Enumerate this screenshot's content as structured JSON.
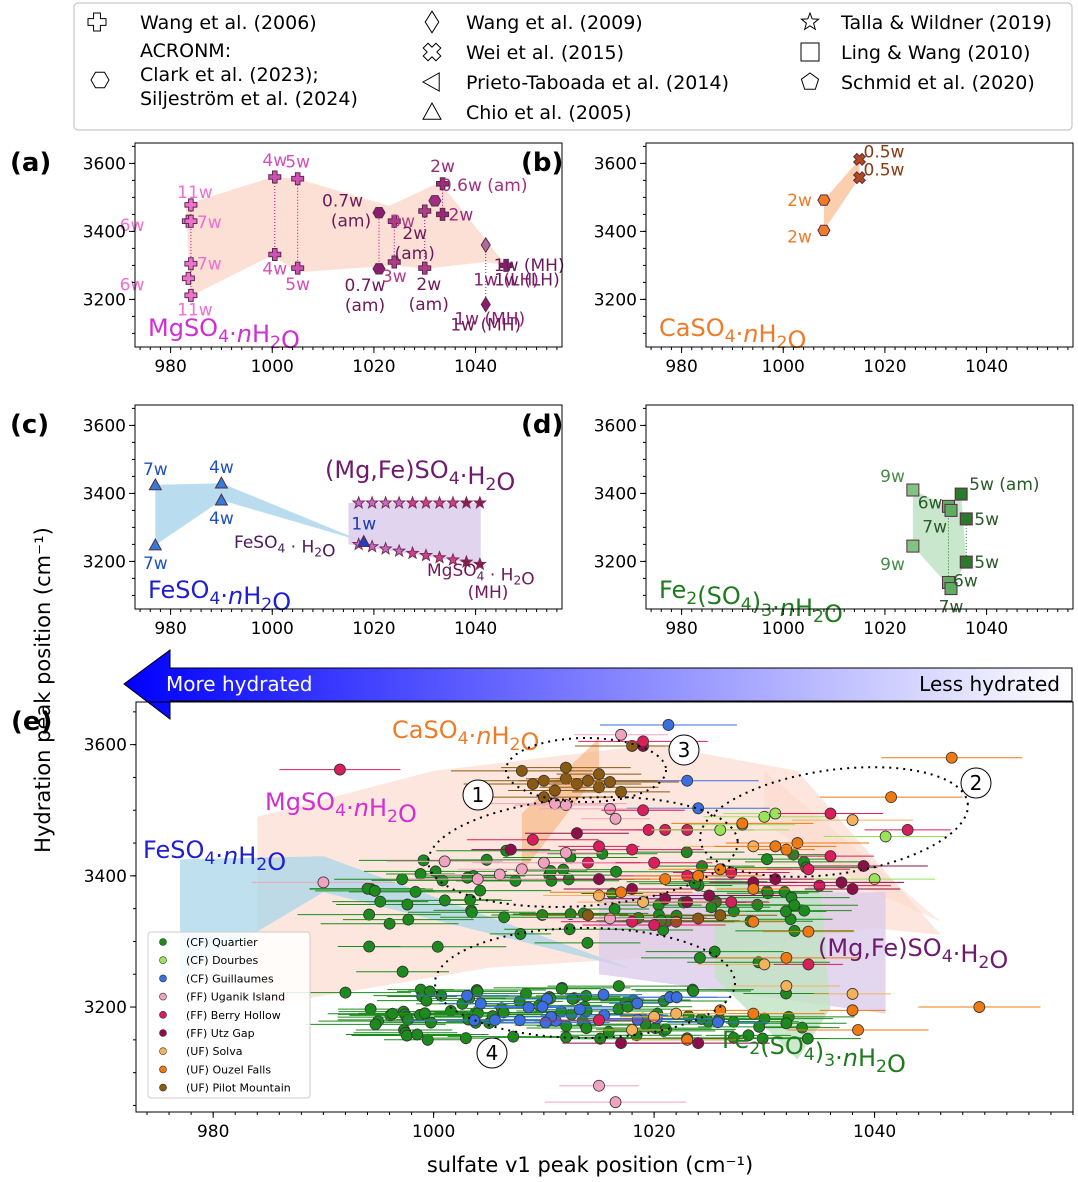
{
  "legend": [
    {
      "label": "Wang et al. (2006)",
      "marker": "plus"
    },
    {
      "label": "ACRONM:",
      "label2": "Clark et al. (2023);",
      "label3": "Siljeström et al. (2024)",
      "marker": "hexagon"
    },
    {
      "label": "Wang et al. (2009)",
      "marker": "diamond"
    },
    {
      "label": "Wei et al. (2015)",
      "marker": "x"
    },
    {
      "label": "Prieto-Taboada et al. (2014)",
      "marker": "triangle-left"
    },
    {
      "label": "Chio et al. (2005)",
      "marker": "triangle-up"
    },
    {
      "label": "Talla & Wildner (2019)",
      "marker": "star"
    },
    {
      "label": "Ling & Wang (2010)",
      "marker": "square"
    },
    {
      "label": "Schmid et al. (2020)",
      "marker": "pentagon"
    }
  ],
  "axes": {
    "xlabel": "sulfate v1 peak position (cm⁻¹)",
    "ylabel": "Hydration peak position (cm⁻¹)",
    "arrow_left": "More hydrated",
    "arrow_right": "Less hydrated"
  },
  "colors": {
    "mg": "#d12fd1",
    "ca": "#ee7b28",
    "fe2": "#1f1fcf",
    "fe3": "#1e7b1e",
    "mgfe": "#6e1a6e",
    "mg_fill": "#fbd5c8",
    "fe2_fill": "#a8d5ea",
    "fe3_fill": "#bfe3c4",
    "mgfe_fill": "#d9c9ea"
  },
  "chart_data": [
    {
      "panel": "(a)",
      "type": "scatter",
      "title": "MgSO4·nH2O",
      "xlim": [
        973,
        1057
      ],
      "ylim": [
        3060,
        3660
      ],
      "xticks": [
        980,
        1000,
        1020,
        1040
      ],
      "yticks": [
        3200,
        3400,
        3600
      ],
      "points": [
        {
          "x": 983.5,
          "y": 3430,
          "label": "6w",
          "color": "#f06fcf",
          "marker": "plus"
        },
        {
          "x": 984,
          "y": 3478,
          "label": "11w",
          "color": "#f06fcf",
          "marker": "plus"
        },
        {
          "x": 984,
          "y": 3430,
          "label": "7w",
          "color": "#f06fcf",
          "marker": "plus"
        },
        {
          "x": 983.5,
          "y": 3262,
          "label": "6w",
          "color": "#f06fcf",
          "marker": "plus"
        },
        {
          "x": 984,
          "y": 3305,
          "label": "7w",
          "color": "#f06fcf",
          "marker": "plus"
        },
        {
          "x": 984,
          "y": 3212,
          "label": "11w",
          "color": "#f06fcf",
          "marker": "plus"
        },
        {
          "x": 1000.5,
          "y": 3560,
          "label": "4w",
          "color": "#d34fb8",
          "marker": "plus"
        },
        {
          "x": 1005,
          "y": 3555,
          "label": "5w",
          "color": "#d34fb8",
          "marker": "plus"
        },
        {
          "x": 1000.5,
          "y": 3332,
          "label": "4w",
          "color": "#d34fb8",
          "marker": "plus"
        },
        {
          "x": 1005,
          "y": 3292,
          "label": "5w",
          "color": "#d34fb8",
          "marker": "plus"
        },
        {
          "x": 1021,
          "y": 3455,
          "label": "0.7w (am)",
          "color": "#8a1d70",
          "marker": "hexagon"
        },
        {
          "x": 1021,
          "y": 3290,
          "label": "0.7w (am)",
          "color": "#8a1d70",
          "marker": "hexagon"
        },
        {
          "x": 1024,
          "y": 3430,
          "label": "3w",
          "color": "#b03c8a",
          "marker": "plus"
        },
        {
          "x": 1024,
          "y": 3310,
          "label": "3w",
          "color": "#b03c8a",
          "marker": "plus"
        },
        {
          "x": 1030,
          "y": 3460,
          "label": "2w (am)",
          "color": "#b03c8a",
          "marker": "plus"
        },
        {
          "x": 1030,
          "y": 3292,
          "label": "2w (am)",
          "color": "#b03c8a",
          "marker": "plus"
        },
        {
          "x": 1032,
          "y": 3490,
          "label": "0.6w (am)",
          "color": "#a0307f",
          "marker": "hexagon"
        },
        {
          "x": 1033.5,
          "y": 3540,
          "label": "2w",
          "color": "#9a2a78",
          "marker": "plus"
        },
        {
          "x": 1033.5,
          "y": 3450,
          "label": "2w",
          "color": "#9a2a78",
          "marker": "plus"
        },
        {
          "x": 1042,
          "y": 3360,
          "label": "1w (MH)",
          "color": "#b06a9a",
          "marker": "diamond"
        },
        {
          "x": 1042,
          "y": 3185,
          "label": "1w (MH)",
          "color": "#8a1d70",
          "marker": "diamond"
        },
        {
          "x": 1046,
          "y": 3300,
          "label": "1w (LH)",
          "color": "#8a1d70",
          "marker": "plus"
        }
      ]
    },
    {
      "panel": "(b)",
      "type": "scatter",
      "title": "CaSO4·nH2O",
      "xlim": [
        973,
        1057
      ],
      "ylim": [
        3060,
        3660
      ],
      "xticks": [
        980,
        1000,
        1020,
        1040
      ],
      "yticks": [
        3200,
        3400,
        3600
      ],
      "points": [
        {
          "x": 1008,
          "y": 3492,
          "label": "2w",
          "color": "#ee7b28",
          "marker": "hexagon"
        },
        {
          "x": 1008,
          "y": 3403,
          "label": "2w",
          "color": "#ee7b28",
          "marker": "hexagon"
        },
        {
          "x": 1015,
          "y": 3612,
          "label": "0.5w",
          "color": "#b24a1a",
          "marker": "x"
        },
        {
          "x": 1015,
          "y": 3558,
          "label": "0.5w",
          "color": "#b24a1a",
          "marker": "x"
        }
      ]
    },
    {
      "panel": "(c)",
      "type": "scatter",
      "title": "FeSO4·nH2O",
      "xlim": [
        973,
        1057
      ],
      "ylim": [
        3060,
        3660
      ],
      "xticks": [
        980,
        1000,
        1020,
        1040
      ],
      "yticks": [
        3200,
        3400,
        3600
      ],
      "points": [
        {
          "x": 977,
          "y": 3425,
          "label": "7w",
          "color": "#2f7fd8",
          "marker": "triangle-up"
        },
        {
          "x": 977,
          "y": 3248,
          "label": "7w",
          "color": "#2f7fd8",
          "marker": "triangle-up"
        },
        {
          "x": 990,
          "y": 3430,
          "label": "4w",
          "color": "#2f7fd8",
          "marker": "triangle-up"
        },
        {
          "x": 990,
          "y": 3380,
          "label": "4w",
          "color": "#2f7fd8",
          "marker": "triangle-up"
        },
        {
          "x": 1018,
          "y": 3258,
          "label": "1w",
          "color": "#1f3fbf",
          "marker": "triangle-up"
        }
      ],
      "annotations": [
        "(Mg,Fe)SO4·H2O",
        "FeSO4 · H2O",
        "MgSO4 · H2O",
        "(MH)"
      ]
    },
    {
      "panel": "(d)",
      "type": "scatter",
      "title": "Fe2(SO4)3·nH2O",
      "xlim": [
        973,
        1057
      ],
      "ylim": [
        3060,
        3660
      ],
      "xticks": [
        980,
        1000,
        1020,
        1040
      ],
      "yticks": [
        3200,
        3400,
        3600
      ],
      "points": [
        {
          "x": 1025.5,
          "y": 3410,
          "label": "9w",
          "color": "#7fc47f",
          "marker": "square"
        },
        {
          "x": 1025.5,
          "y": 3245,
          "label": "9w",
          "color": "#7fc47f",
          "marker": "square"
        },
        {
          "x": 1032.5,
          "y": 3362,
          "label": "6w",
          "color": "#5fae5f",
          "marker": "square"
        },
        {
          "x": 1032.5,
          "y": 3138,
          "label": "6w",
          "color": "#5fae5f",
          "marker": "square"
        },
        {
          "x": 1033,
          "y": 3350,
          "label": "7w",
          "color": "#5fae5f",
          "marker": "square"
        },
        {
          "x": 1033,
          "y": 3120,
          "label": "7w",
          "color": "#5fae5f",
          "marker": "square"
        },
        {
          "x": 1035,
          "y": 3398,
          "label": "5w (am)",
          "color": "#2a7a2a",
          "marker": "square"
        },
        {
          "x": 1036,
          "y": 3325,
          "label": "5w",
          "color": "#2a7a2a",
          "marker": "square"
        },
        {
          "x": 1036,
          "y": 3198,
          "label": "5w",
          "color": "#2a7a2a",
          "marker": "square"
        }
      ]
    },
    {
      "panel": "(e)",
      "type": "scatter",
      "xlim": [
        973,
        1058
      ],
      "ylim": [
        3040,
        3665
      ],
      "xticks": [
        980,
        1000,
        1020,
        1040
      ],
      "yticks": [
        3200,
        3400,
        3600
      ],
      "region_labels": [
        "CaSO4·nH2O",
        "MgSO4·nH2O",
        "FeSO4·nH2O",
        "(Mg,Fe)SO4·H2O",
        "Fe2(SO4)3·nH2O"
      ],
      "cluster_labels": [
        "1",
        "2",
        "3",
        "4"
      ],
      "series": [
        {
          "name": "(CF) Quartier",
          "color": "#1d8a1d"
        },
        {
          "name": "(CF) Dourbes",
          "color": "#9be35a"
        },
        {
          "name": "(CF) Guillaumes",
          "color": "#3a6fe0"
        },
        {
          "name": "(FF) Uganik Island",
          "color": "#f0a3bf"
        },
        {
          "name": "(FF) Berry Hollow",
          "color": "#d81e5b"
        },
        {
          "name": "(FF) Utz Gap",
          "color": "#8c0f4a"
        },
        {
          "name": "(UF) Solva",
          "color": "#f3b25b"
        },
        {
          "name": "(UF) Ouzel Falls",
          "color": "#ef7a12"
        },
        {
          "name": "(UF) Pilot Mountain",
          "color": "#8a5a12"
        }
      ],
      "points": [
        [
          1021.3,
          3630,
          2
        ],
        [
          1017,
          3615,
          3
        ],
        [
          1019,
          3598,
          5
        ],
        [
          1023,
          3545,
          2
        ],
        [
          1024,
          3503,
          2
        ],
        [
          991.5,
          3562,
          4
        ],
        [
          1047,
          3580,
          7
        ],
        [
          1041.5,
          3520,
          7
        ],
        [
          1011,
          3510,
          3
        ],
        [
          1012,
          3508,
          3
        ],
        [
          1016,
          3502,
          3
        ],
        [
          1016.5,
          3487,
          3
        ],
        [
          1019,
          3500,
          4
        ],
        [
          1019.5,
          3470,
          4
        ],
        [
          1021,
          3470,
          4
        ],
        [
          1023,
          3470,
          4
        ],
        [
          1026,
          3470,
          1
        ],
        [
          1028,
          3478,
          1
        ],
        [
          1030,
          3490,
          1
        ],
        [
          1031,
          3495,
          1
        ],
        [
          1036,
          3495,
          4
        ],
        [
          1038,
          3485,
          6
        ],
        [
          1041,
          3460,
          1
        ],
        [
          1043,
          3470,
          4
        ],
        [
          1033,
          3450,
          7
        ],
        [
          1036,
          3430,
          4
        ],
        [
          1039,
          3415,
          5
        ],
        [
          1032,
          3440,
          7
        ],
        [
          1029,
          3445,
          6
        ],
        [
          1027,
          3405,
          4
        ],
        [
          1023,
          3400,
          4
        ],
        [
          1020,
          3420,
          4
        ],
        [
          1018,
          3440,
          4
        ],
        [
          1015,
          3445,
          4
        ],
        [
          1014,
          3420,
          4
        ],
        [
          1012,
          3435,
          3
        ],
        [
          1010,
          3420,
          3
        ],
        [
          1008,
          3410,
          3
        ],
        [
          1006,
          3402,
          3
        ],
        [
          1004,
          3395,
          3
        ],
        [
          1001,
          3422,
          3
        ],
        [
          990,
          3390,
          3
        ],
        [
          1009,
          3455,
          4
        ],
        [
          1007,
          3440,
          5
        ],
        [
          1013,
          3465,
          5
        ],
        [
          1015,
          3395,
          5
        ],
        [
          1018,
          3380,
          5
        ],
        [
          1021,
          3365,
          5
        ],
        [
          1023,
          3360,
          5
        ],
        [
          1025,
          3370,
          5
        ],
        [
          1027,
          3360,
          4
        ],
        [
          1029,
          3390,
          5
        ],
        [
          1031,
          3395,
          5
        ],
        [
          1035,
          3385,
          4
        ],
        [
          1038,
          3380,
          5
        ],
        [
          1040,
          3395,
          1
        ],
        [
          1015,
          3370,
          6
        ],
        [
          1017,
          3375,
          7
        ],
        [
          1019,
          3360,
          6
        ],
        [
          1021,
          3395,
          7
        ],
        [
          1024,
          3400,
          7
        ],
        [
          1026,
          3410,
          7
        ],
        [
          1029,
          3380,
          7
        ],
        [
          1034,
          3410,
          4
        ],
        [
          1037,
          3390,
          5
        ],
        [
          1038,
          3220,
          6
        ],
        [
          1038,
          3195,
          7
        ],
        [
          1038.5,
          3165,
          7
        ],
        [
          1049.5,
          3200,
          7
        ],
        [
          1034,
          3315,
          7
        ],
        [
          1032,
          3275,
          7
        ],
        [
          1030,
          3265,
          6
        ],
        [
          1032,
          3232,
          6
        ],
        [
          1034,
          3265,
          4
        ],
        [
          1029,
          3190,
          7
        ],
        [
          1026,
          3195,
          7
        ],
        [
          1023,
          3150,
          7
        ],
        [
          1022,
          3190,
          6
        ],
        [
          1020,
          3185,
          6
        ],
        [
          1018,
          3165,
          6
        ],
        [
          1015,
          3180,
          4
        ],
        [
          1017,
          3145,
          5
        ],
        [
          1024,
          3145,
          5
        ],
        [
          1015,
          3080,
          3
        ],
        [
          1016.5,
          3055,
          3
        ],
        [
          1028,
          3480,
          7
        ],
        [
          1031,
          3445,
          7
        ],
        [
          1029,
          3330,
          7
        ],
        [
          1026,
          3340,
          8
        ],
        [
          1024,
          3335,
          8
        ],
        [
          1022,
          3330,
          8
        ],
        [
          1020,
          3325,
          4
        ],
        [
          1018,
          3330,
          4
        ],
        [
          1016,
          3335,
          3
        ],
        [
          1014,
          3340,
          8
        ],
        [
          1010,
          3545,
          8
        ],
        [
          1011,
          3530,
          8
        ],
        [
          1012,
          3548,
          8
        ],
        [
          1013,
          3540,
          8
        ],
        [
          1014,
          3545,
          8
        ],
        [
          1015,
          3535,
          8
        ],
        [
          1016,
          3543,
          8
        ],
        [
          1017,
          3528,
          8
        ],
        [
          1018,
          3598,
          8
        ],
        [
          1008,
          3560,
          8
        ],
        [
          1009,
          3540,
          8
        ],
        [
          1012,
          3565,
          8
        ],
        [
          1015,
          3555,
          8
        ],
        [
          1019,
          3605,
          4
        ],
        [
          1010,
          3520,
          8
        ]
      ],
      "green_points_note": "dense cluster of (CF) Quartier points spans x 992–1035, y 3150–3470"
    }
  ]
}
